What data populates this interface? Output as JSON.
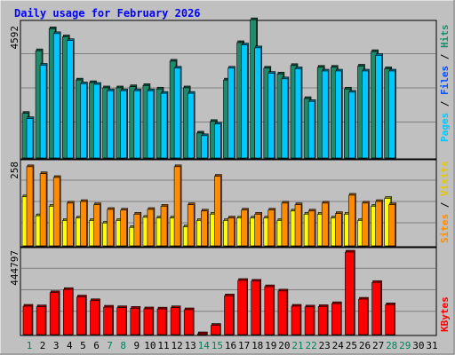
{
  "chart_data": {
    "type": "bar",
    "title": "Daily usage for February 2026",
    "days": [
      "1",
      "2",
      "3",
      "4",
      "5",
      "6",
      "7",
      "8",
      "9",
      "10",
      "11",
      "12",
      "13",
      "14",
      "15",
      "16",
      "17",
      "18",
      "19",
      "20",
      "21",
      "22",
      "23",
      "24",
      "25",
      "26",
      "27",
      "28",
      "29",
      "30",
      "31"
    ],
    "weekend_days": [
      "1",
      "7",
      "8",
      "14",
      "15",
      "21",
      "22",
      "28",
      "29"
    ],
    "panels": [
      {
        "id": "top",
        "max_label": "4592",
        "ylim": [
          0,
          4592
        ],
        "series": [
          {
            "name": "Hits",
            "color": "#1e8c6c",
            "values": [
              1540,
              3700,
              4460,
              4180,
              2690,
              2600,
              2420,
              2420,
              2460,
              2500,
              2380,
              3340,
              2420,
              860,
              1260,
              2690,
              3980,
              4770,
              3100,
              2900,
              3190,
              2050,
              3130,
              3130,
              2380,
              3170,
              3670,
              3080,
              null,
              null,
              null
            ]
          },
          {
            "name": "Files",
            "color": "#00c8ff",
            "values": [
              1360,
              3200,
              4290,
              4050,
              2560,
              2540,
              2320,
              2320,
              2320,
              2320,
              2230,
              3100,
              2230,
              770,
              1170,
              3100,
              3900,
              3800,
              2920,
              2730,
              3080,
              1950,
              3000,
              3000,
              2270,
              3000,
              3540,
              3000,
              null,
              null,
              null
            ]
          },
          {
            "name": "Pages",
            "color": "#00c8ff"
          }
        ]
      },
      {
        "id": "middle",
        "max_label": "258",
        "ylim": [
          0,
          258
        ],
        "series": [
          {
            "name": "Visits",
            "color": "#ffff00",
            "values": [
              155,
              95,
              125,
              80,
              88,
              80,
              72,
              80,
              58,
              90,
              88,
              88,
              60,
              80,
              100,
              80,
              88,
              88,
              88,
              80,
              110,
              100,
              100,
              88,
              100,
              80,
              125,
              150,
              null,
              null,
              null
            ]
          },
          {
            "name": "Sites",
            "color": "#ff8c00",
            "values": [
              250,
              228,
              216,
              135,
              140,
              130,
              115,
              113,
              100,
              115,
              125,
              250,
              130,
              110,
              220,
              88,
              113,
              100,
              113,
              135,
              130,
              110,
              135,
              102,
              160,
              135,
              140,
              130,
              null,
              null,
              null
            ]
          }
        ]
      },
      {
        "id": "bottom",
        "max_label": "444797",
        "ylim": [
          0,
          444797
        ],
        "series": [
          {
            "name": "KBytes",
            "color": "#ff0000",
            "values": [
              153000,
              150000,
              226000,
              243000,
              203000,
              183000,
              148000,
              145000,
              142000,
              139000,
              138000,
              145000,
              134000,
              2000,
              50000,
              209000,
              292000,
              288000,
              258000,
              235000,
              153000,
              149000,
              151000,
              167000,
              444797,
              191000,
              281000,
              161000,
              null,
              null,
              null
            ]
          }
        ]
      }
    ],
    "legend_right": {
      "top": [
        "Pages",
        "Files",
        "Hits"
      ],
      "middle": [
        "Sites",
        "Visits"
      ],
      "bottom": [
        "KBytes"
      ]
    },
    "grid": true
  },
  "colors": {
    "background": "#c0c0c0",
    "title": "#0000ff",
    "grid": "#808080",
    "weekend": "#00805c",
    "weekday": "#000000"
  }
}
